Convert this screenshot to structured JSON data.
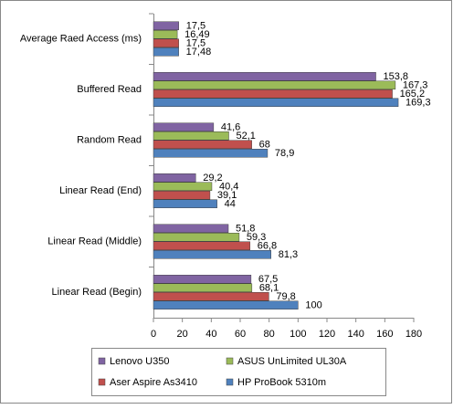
{
  "chart_data": {
    "type": "bar",
    "orientation": "horizontal",
    "categories": [
      "Average Raed Access (ms)",
      "Buffered Read",
      "Random Read",
      "Linear Read (End)",
      "Linear Read (Middle)",
      "Linear Read (Begin)"
    ],
    "series": [
      {
        "name": "Lenovo U350",
        "color": "#8064a2",
        "values": [
          17.5,
          153.8,
          41.6,
          29.2,
          51.8,
          67.5
        ],
        "value_labels": [
          "17,5",
          "153,8",
          "41,6",
          "29,2",
          "51,8",
          "67,5"
        ]
      },
      {
        "name": "ASUS UnLimited UL30A",
        "color": "#9bbb59",
        "values": [
          16.49,
          167.3,
          52.1,
          40.4,
          59.3,
          68.1
        ],
        "value_labels": [
          "16,49",
          "167,3",
          "52,1",
          "40,4",
          "59,3",
          "68,1"
        ]
      },
      {
        "name": "Aser Aspire As3410",
        "color": "#c0504d",
        "values": [
          17.5,
          165.2,
          68,
          39.1,
          66.8,
          79.8
        ],
        "value_labels": [
          "17,5",
          "165,2",
          "68",
          "39,1",
          "66,8",
          "79,8"
        ]
      },
      {
        "name": "HP ProBook 5310m",
        "color": "#4f81bd",
        "values": [
          17.48,
          169.3,
          78.9,
          44,
          81.3,
          100
        ],
        "value_labels": [
          "17,48",
          "169,3",
          "78,9",
          "44",
          "81,3",
          "100"
        ]
      }
    ],
    "xlim": [
      0,
      180
    ],
    "xticks": [
      0,
      20,
      40,
      60,
      80,
      100,
      120,
      140,
      160,
      180
    ],
    "grid": false,
    "legend": "bottom"
  }
}
